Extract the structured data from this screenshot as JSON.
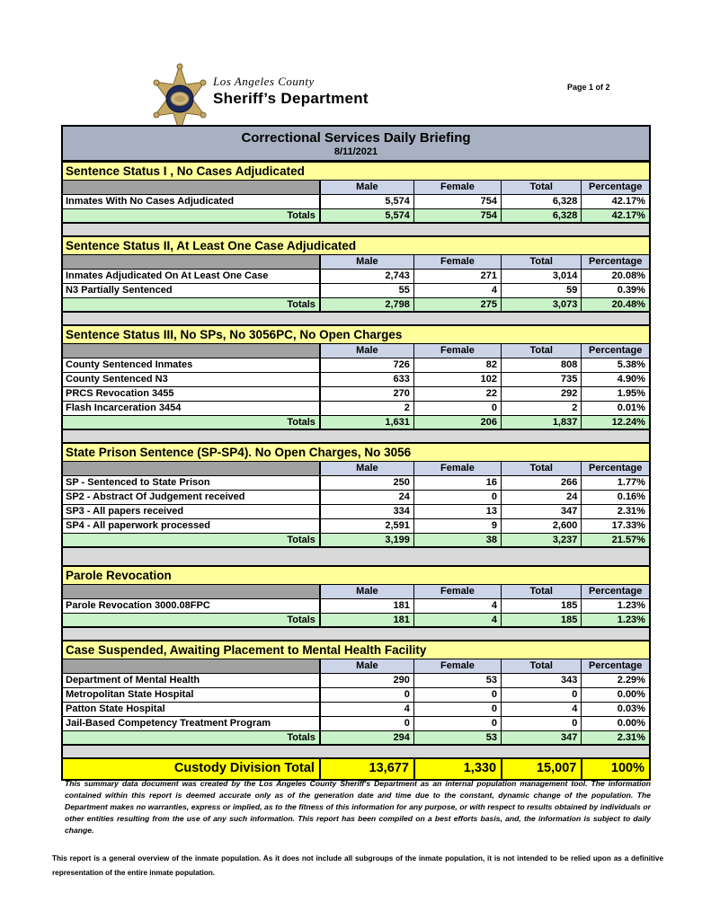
{
  "header": {
    "agency_line1": "Los Angeles County",
    "agency_line2": "Sheriff’s Department",
    "page_label": "Page 1 of 2"
  },
  "report": {
    "title": "Correctional Services Daily Briefing",
    "date": "8/11/2021",
    "columns": [
      "Male",
      "Female",
      "Total",
      "Percentage"
    ],
    "totals_label": "Totals",
    "sections": [
      {
        "title": "Sentence Status I , No Cases Adjudicated",
        "rows": [
          {
            "label": "Inmates With No Cases Adjudicated",
            "male": "5,574",
            "female": "754",
            "total": "6,328",
            "percentage": "42.17%"
          }
        ],
        "totals": {
          "male": "5,574",
          "female": "754",
          "total": "6,328",
          "percentage": "42.17%"
        }
      },
      {
        "title": "Sentence Status II, At Least One Case Adjudicated",
        "rows": [
          {
            "label": "Inmates Adjudicated On At Least One Case",
            "male": "2,743",
            "female": "271",
            "total": "3,014",
            "percentage": "20.08%"
          },
          {
            "label": "N3 Partially Sentenced",
            "male": "55",
            "female": "4",
            "total": "59",
            "percentage": "0.39%"
          }
        ],
        "totals": {
          "male": "2,798",
          "female": "275",
          "total": "3,073",
          "percentage": "20.48%"
        }
      },
      {
        "title": "Sentence Status III, No SPs, No 3056PC, No Open Charges",
        "rows": [
          {
            "label": "County Sentenced Inmates",
            "male": "726",
            "female": "82",
            "total": "808",
            "percentage": "5.38%"
          },
          {
            "label": "County Sentenced N3",
            "male": "633",
            "female": "102",
            "total": "735",
            "percentage": "4.90%"
          },
          {
            "label": "PRCS Revocation 3455",
            "male": "270",
            "female": "22",
            "total": "292",
            "percentage": "1.95%"
          },
          {
            "label": "Flash Incarceration 3454",
            "male": "2",
            "female": "0",
            "total": "2",
            "percentage": "0.01%"
          }
        ],
        "totals": {
          "male": "1,631",
          "female": "206",
          "total": "1,837",
          "percentage": "12.24%"
        }
      },
      {
        "title": "State Prison Sentence (SP-SP4). No Open Charges, No 3056",
        "rows": [
          {
            "label": "SP - Sentenced to State Prison",
            "male": "250",
            "female": "16",
            "total": "266",
            "percentage": "1.77%"
          },
          {
            "label": "SP2 - Abstract Of Judgement received",
            "male": "24",
            "female": "0",
            "total": "24",
            "percentage": "0.16%"
          },
          {
            "label": "SP3 - All papers received",
            "male": "334",
            "female": "13",
            "total": "347",
            "percentage": "2.31%"
          },
          {
            "label": "SP4 - All paperwork processed",
            "male": "2,591",
            "female": "9",
            "total": "2,600",
            "percentage": "17.33%"
          }
        ],
        "totals": {
          "male": "3,199",
          "female": "38",
          "total": "3,237",
          "percentage": "21.57%"
        }
      },
      {
        "title": "Parole Revocation",
        "rows": [
          {
            "label": "Parole Revocation 3000.08FPC",
            "male": "181",
            "female": "4",
            "total": "185",
            "percentage": "1.23%"
          }
        ],
        "totals": {
          "male": "181",
          "female": "4",
          "total": "185",
          "percentage": "1.23%"
        }
      },
      {
        "title": "Case Suspended, Awaiting Placement to Mental Health Facility",
        "rows": [
          {
            "label": "Department of Mental Health",
            "male": "290",
            "female": "53",
            "total": "343",
            "percentage": "2.29%"
          },
          {
            "label": "Metropolitan State Hospital",
            "male": "0",
            "female": "0",
            "total": "0",
            "percentage": "0.00%"
          },
          {
            "label": "Patton State Hospital",
            "male": "4",
            "female": "0",
            "total": "4",
            "percentage": "0.03%"
          },
          {
            "label": "Jail-Based Competency Treatment Program",
            "male": "0",
            "female": "0",
            "total": "0",
            "percentage": "0.00%"
          }
        ],
        "totals": {
          "male": "294",
          "female": "53",
          "total": "347",
          "percentage": "2.31%"
        }
      }
    ],
    "grand_total": {
      "label": "Custody Division Total",
      "male": "13,677",
      "female": "1,330",
      "total": "15,007",
      "percentage": "100%"
    }
  },
  "footer": {
    "disclaimer": "This summary data document was created by the Los Angeles County Sheriff's Department as an internal population management tool.  The information contained within this report is deemed accurate only as of the generation date and time due to the constant, dynamic change of the population.  The Department makes no warranties, express or implied, as to the fitness of this information for any purpose, or with respect to results obtained by individuals or other entities resulting from the use of any such information.  This report has been compiled on a best efforts basis, and, the information is subject to daily change.",
    "note": "This report is a general overview of the inmate population.  As it does not include all subgroups of the inmate population, it is not intended to be relied upon as a definitive representation of the entire inmate population."
  },
  "colors": {
    "title_bar": "#a7b1c1",
    "section_header": "#ffff9c",
    "column_header": "#ccd4e8",
    "corner_cell": "#a1a1a1",
    "totals_row": "#c9f2c9",
    "grand_total_row": "#ffff00",
    "spacer": "#d9d9d9"
  }
}
